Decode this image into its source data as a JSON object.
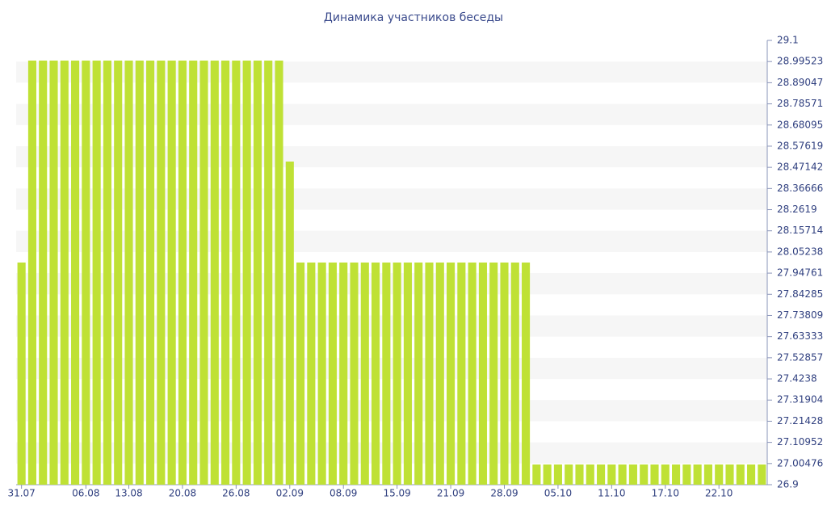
{
  "chart_data": {
    "type": "bar",
    "title": "Динамика участников беседы",
    "categories": [
      "31.07",
      null,
      null,
      null,
      null,
      null,
      "06.08",
      null,
      null,
      null,
      "13.08",
      null,
      null,
      null,
      null,
      "20.08",
      null,
      null,
      null,
      null,
      "26.08",
      null,
      null,
      null,
      null,
      "02.09",
      null,
      null,
      null,
      null,
      "08.09",
      null,
      null,
      null,
      null,
      "15.09",
      null,
      null,
      null,
      null,
      "21.09",
      null,
      null,
      null,
      null,
      "28.09",
      null,
      null,
      null,
      null,
      "05.10",
      null,
      null,
      null,
      null,
      "11.10",
      null,
      null,
      null,
      null,
      "17.10",
      null,
      null,
      null,
      null,
      "22.10",
      null,
      null,
      null,
      null
    ],
    "values": [
      28,
      29,
      29,
      29,
      29,
      29,
      29,
      29,
      29,
      29,
      29,
      29,
      29,
      29,
      29,
      29,
      29,
      29,
      29,
      29,
      29,
      29,
      29,
      29,
      29,
      28.5,
      28,
      28,
      28,
      28,
      28,
      28,
      28,
      28,
      28,
      28,
      28,
      28,
      28,
      28,
      28,
      28,
      28,
      28,
      28,
      28,
      28,
      28,
      27,
      27,
      27,
      27,
      27,
      27,
      27,
      27,
      27,
      27,
      27,
      27,
      27,
      27,
      27,
      27,
      27,
      27,
      27,
      27,
      27,
      27
    ],
    "color": "#bfe135",
    "ylim": [
      26.9,
      29.1
    ],
    "yticks": [
      29.1,
      28.99523,
      28.89047,
      28.78571,
      28.68095,
      28.57619,
      28.47142,
      28.36666,
      28.2619,
      28.15714,
      28.05238,
      27.94761,
      27.84285,
      27.73809,
      27.63333,
      27.52857,
      27.4238,
      27.31904,
      27.21428,
      27.10952,
      27.00476,
      26.9
    ],
    "grid": "bands"
  }
}
